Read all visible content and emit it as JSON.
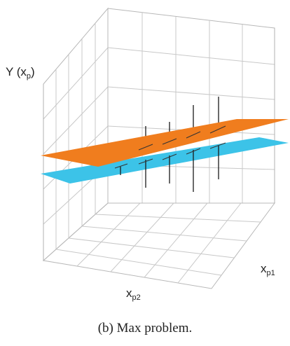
{
  "chart_data": {
    "type": "surface-3d",
    "y_axis_label": {
      "base": "Y (x",
      "sub": "p",
      "tail": ")"
    },
    "x1_axis_label": {
      "base": "x",
      "sub": "p1"
    },
    "x2_axis_label": {
      "base": "x",
      "sub": "p2"
    },
    "grid": true,
    "series": [
      {
        "kind": "plane",
        "color": "#f07d1e"
      },
      {
        "kind": "plane",
        "color": "#3cc3e8"
      }
    ]
  },
  "caption": "(b) Max problem."
}
